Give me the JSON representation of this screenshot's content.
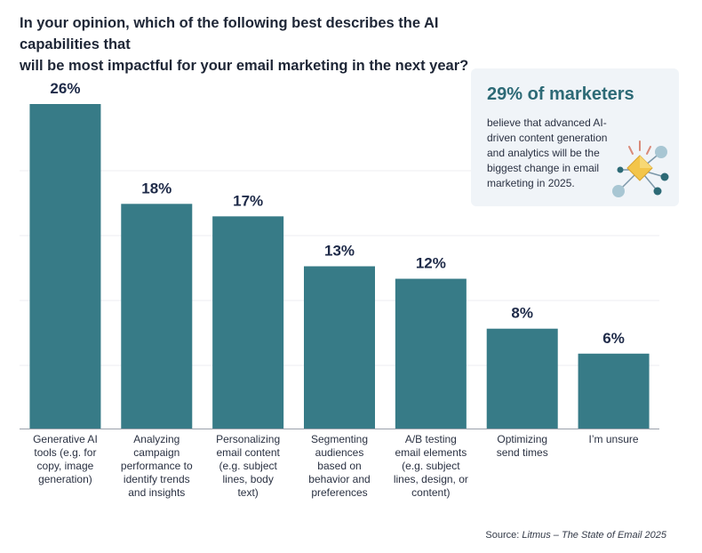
{
  "title_lines": [
    "In your opinion, which of the following best describes the AI capabilities that",
    "will be most impactful for your email marketing in the next year?"
  ],
  "callout": {
    "headline": "29% of marketers",
    "body": "believe that advanced AI-driven content generation and analytics will be the biggest change in email marketing in 2025.",
    "icon": "network-diamond-icon"
  },
  "source": {
    "prefix": "Source: ",
    "text": "Litmus – The State of Email 2025"
  },
  "colors": {
    "bar": "#377b87",
    "label": "#1e2a48",
    "callout_bg": "#f0f4f8",
    "accent": "#2d6a76"
  },
  "chart_data": {
    "type": "bar",
    "categories": [
      [
        "Generative AI",
        "tools (e.g. for",
        "copy, image",
        "generation)"
      ],
      [
        "Analyzing",
        "campaign",
        "performance to",
        "identify trends",
        "and insights"
      ],
      [
        "Personalizing",
        "email content",
        "(e.g. subject",
        "lines, body",
        "text)"
      ],
      [
        "Segmenting",
        "audiences",
        "based on",
        "behavior and",
        "preferences"
      ],
      [
        "A/B testing",
        "email elements",
        "(e.g. subject",
        "lines, design, or",
        "content)"
      ],
      [
        "Optimizing",
        "send times"
      ],
      [
        "I’m unsure"
      ]
    ],
    "values": [
      26,
      18,
      17,
      13,
      12,
      8,
      6
    ],
    "value_labels": [
      "26%",
      "18%",
      "17%",
      "13%",
      "12%",
      "8%",
      "6%"
    ],
    "ylim": [
      0,
      26
    ],
    "grid": true,
    "xlabel": "",
    "ylabel": ""
  }
}
